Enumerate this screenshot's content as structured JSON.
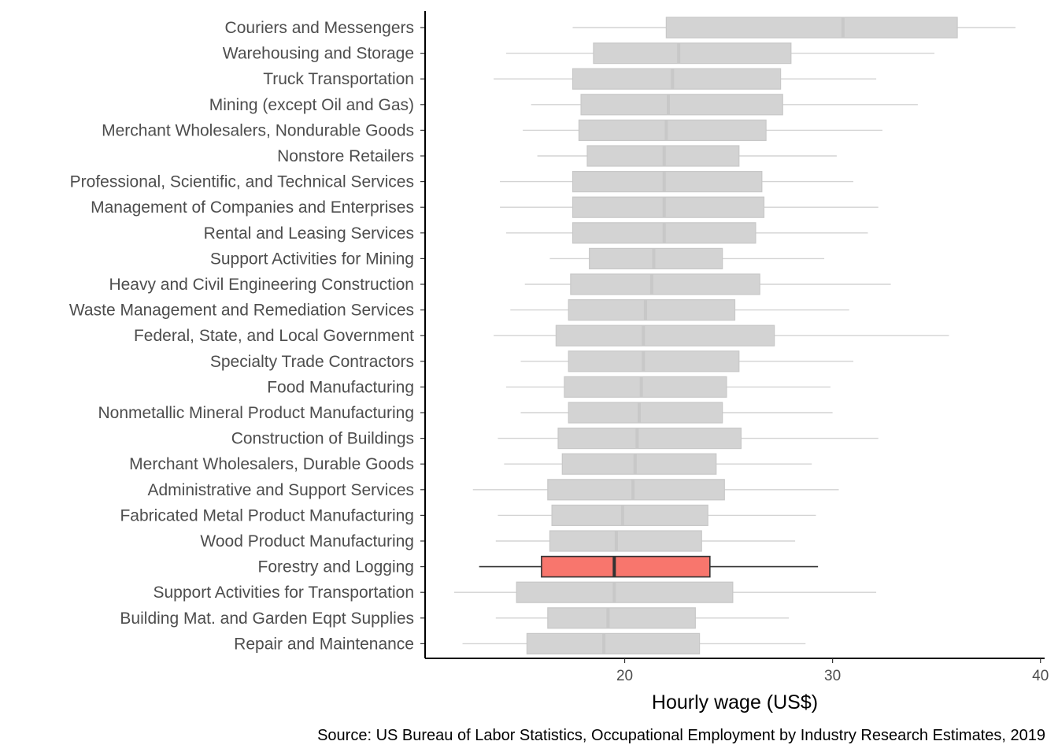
{
  "chart_data": {
    "type": "boxplot",
    "orientation": "horizontal",
    "xlabel": "Hourly wage (US$)",
    "caption": "Source: US Bureau of Labor Statistics, Occupational Employment by Industry Research Estimates, 2019",
    "xlim": [
      10.4,
      40.2
    ],
    "x_ticks": [
      20,
      30,
      40
    ],
    "grid": false,
    "legend": "none",
    "colors": {
      "highlight_fill": "#F8766D",
      "highlight_line": "#333333",
      "box_fill": "#D3D3D3",
      "box_line": "#C8C8C8",
      "whisker": "#D3D3D3",
      "axis": "#000000"
    },
    "highlight": "Forestry and Logging",
    "categories": [
      {
        "name": "Couriers and Messengers",
        "whisker_low": 17.5,
        "q1": 22.0,
        "median": 30.5,
        "q3": 36.0,
        "whisker_high": 38.8
      },
      {
        "name": "Warehousing and Storage",
        "whisker_low": 14.3,
        "q1": 18.5,
        "median": 22.6,
        "q3": 28.0,
        "whisker_high": 34.9
      },
      {
        "name": "Truck Transportation",
        "whisker_low": 13.7,
        "q1": 17.5,
        "median": 22.3,
        "q3": 27.5,
        "whisker_high": 32.1
      },
      {
        "name": "Mining (except Oil and Gas)",
        "whisker_low": 15.5,
        "q1": 17.9,
        "median": 22.1,
        "q3": 27.6,
        "whisker_high": 34.1
      },
      {
        "name": "Merchant Wholesalers, Nondurable Goods",
        "whisker_low": 15.1,
        "q1": 17.8,
        "median": 22.0,
        "q3": 26.8,
        "whisker_high": 32.4
      },
      {
        "name": "Nonstore Retailers",
        "whisker_low": 15.8,
        "q1": 18.2,
        "median": 21.9,
        "q3": 25.5,
        "whisker_high": 30.2
      },
      {
        "name": "Professional, Scientific, and Technical Services",
        "whisker_low": 14.0,
        "q1": 17.5,
        "median": 21.9,
        "q3": 26.6,
        "whisker_high": 31.0
      },
      {
        "name": "Management of Companies and Enterprises",
        "whisker_low": 14.0,
        "q1": 17.5,
        "median": 21.9,
        "q3": 26.7,
        "whisker_high": 32.2
      },
      {
        "name": "Rental and Leasing Services",
        "whisker_low": 14.3,
        "q1": 17.5,
        "median": 21.9,
        "q3": 26.3,
        "whisker_high": 31.7
      },
      {
        "name": "Support Activities for Mining",
        "whisker_low": 16.4,
        "q1": 18.3,
        "median": 21.4,
        "q3": 24.7,
        "whisker_high": 29.6
      },
      {
        "name": "Heavy and Civil Engineering Construction",
        "whisker_low": 15.2,
        "q1": 17.4,
        "median": 21.3,
        "q3": 26.5,
        "whisker_high": 32.8
      },
      {
        "name": "Waste Management and Remediation Services",
        "whisker_low": 14.5,
        "q1": 17.3,
        "median": 21.0,
        "q3": 25.3,
        "whisker_high": 30.8
      },
      {
        "name": "Federal, State, and Local Government",
        "whisker_low": 13.7,
        "q1": 16.7,
        "median": 20.9,
        "q3": 27.2,
        "whisker_high": 35.6
      },
      {
        "name": "Specialty Trade Contractors",
        "whisker_low": 15.0,
        "q1": 17.3,
        "median": 20.9,
        "q3": 25.5,
        "whisker_high": 31.0
      },
      {
        "name": "Food Manufacturing",
        "whisker_low": 14.3,
        "q1": 17.1,
        "median": 20.8,
        "q3": 24.9,
        "whisker_high": 29.9
      },
      {
        "name": "Nonmetallic Mineral Product Manufacturing",
        "whisker_low": 15.0,
        "q1": 17.3,
        "median": 20.7,
        "q3": 24.7,
        "whisker_high": 30.0
      },
      {
        "name": "Construction of Buildings",
        "whisker_low": 13.9,
        "q1": 16.8,
        "median": 20.6,
        "q3": 25.6,
        "whisker_high": 32.2
      },
      {
        "name": "Merchant Wholesalers, Durable Goods",
        "whisker_low": 14.2,
        "q1": 17.0,
        "median": 20.5,
        "q3": 24.4,
        "whisker_high": 29.0
      },
      {
        "name": "Administrative and Support Services",
        "whisker_low": 12.7,
        "q1": 16.3,
        "median": 20.4,
        "q3": 24.8,
        "whisker_high": 30.3
      },
      {
        "name": "Fabricated Metal Product Manufacturing",
        "whisker_low": 13.9,
        "q1": 16.5,
        "median": 19.9,
        "q3": 24.0,
        "whisker_high": 29.2
      },
      {
        "name": "Wood Product Manufacturing",
        "whisker_low": 13.8,
        "q1": 16.4,
        "median": 19.6,
        "q3": 23.7,
        "whisker_high": 28.2
      },
      {
        "name": "Forestry and Logging",
        "whisker_low": 13.0,
        "q1": 16.0,
        "median": 19.5,
        "q3": 24.1,
        "whisker_high": 29.3
      },
      {
        "name": "Support Activities for Transportation",
        "whisker_low": 11.8,
        "q1": 14.8,
        "median": 19.5,
        "q3": 25.2,
        "whisker_high": 32.1
      },
      {
        "name": "Building Mat. and Garden Eqpt Supplies",
        "whisker_low": 13.8,
        "q1": 16.3,
        "median": 19.2,
        "q3": 23.4,
        "whisker_high": 27.9
      },
      {
        "name": "Repair and Maintenance",
        "whisker_low": 12.2,
        "q1": 15.3,
        "median": 19.0,
        "q3": 23.6,
        "whisker_high": 28.7
      }
    ]
  }
}
